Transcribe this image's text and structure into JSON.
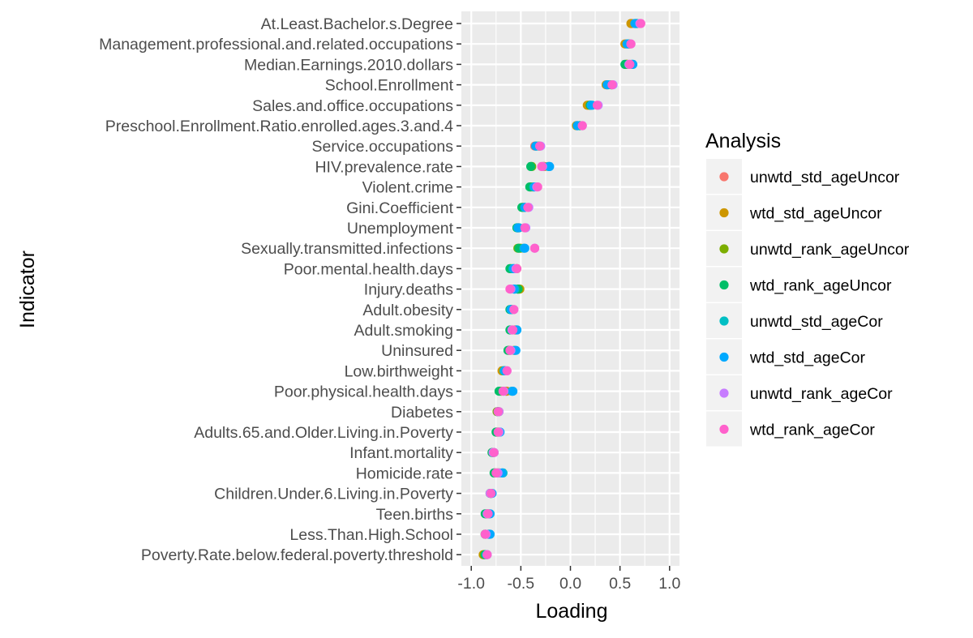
{
  "chart_data": {
    "type": "scatter",
    "title": "",
    "xlabel": "Loading",
    "ylabel": "Indicator",
    "xlim": [
      -1.1,
      1.1
    ],
    "xticks": [
      -1.0,
      -0.5,
      0.0,
      0.5,
      1.0
    ],
    "xtick_labels": [
      "-1.0",
      "-0.5",
      "0.0",
      "0.5",
      "1.0"
    ],
    "grid": true,
    "legend": {
      "title": "Analysis",
      "position": "right"
    },
    "categories": [
      "At.Least.Bachelor.s.Degree",
      "Management.professional.and.related.occupations",
      "Median.Earnings.2010.dollars",
      "School.Enrollment",
      "Sales.and.office.occupations",
      "Preschool.Enrollment.Ratio.enrolled.ages.3.and.4",
      "Service.occupations",
      "HIV.prevalence.rate",
      "Violent.crime",
      "Gini.Coefficient",
      "Unemployment",
      "Sexually.transmitted.infections",
      "Poor.mental.health.days",
      "Injury.deaths",
      "Adult.obesity",
      "Adult.smoking",
      "Uninsured",
      "Low.birthweight",
      "Poor.physical.health.days",
      "Diabetes",
      "Adults.65.and.Older.Living.in.Poverty",
      "Infant.mortality",
      "Homicide.rate",
      "Children.Under.6.Living.in.Poverty",
      "Teen.births",
      "Less.Than.High.School",
      "Poverty.Rate.below.federal.poverty.threshold"
    ],
    "series": [
      {
        "name": "unwtd_std_ageUncor",
        "color": "#F8766D",
        "values": [
          0.62,
          0.56,
          0.56,
          0.37,
          0.18,
          0.07,
          -0.36,
          -0.26,
          -0.39,
          -0.48,
          -0.52,
          -0.51,
          -0.57,
          -0.53,
          -0.59,
          -0.55,
          -0.61,
          -0.68,
          -0.64,
          -0.73,
          -0.74,
          -0.78,
          -0.74,
          -0.8,
          -0.83,
          -0.83,
          -0.87
        ]
      },
      {
        "name": "wtd_std_ageUncor",
        "color": "#CD9600",
        "values": [
          0.61,
          0.55,
          0.57,
          0.36,
          0.17,
          0.06,
          -0.35,
          -0.27,
          -0.38,
          -0.47,
          -0.53,
          -0.5,
          -0.54,
          -0.51,
          -0.6,
          -0.56,
          -0.57,
          -0.69,
          -0.65,
          -0.72,
          -0.73,
          -0.78,
          -0.72,
          -0.81,
          -0.84,
          -0.82,
          -0.88
        ]
      },
      {
        "name": "unwtd_rank_ageUncor",
        "color": "#7CAE00",
        "values": [
          0.66,
          0.6,
          0.57,
          0.42,
          0.2,
          0.09,
          -0.32,
          -0.39,
          -0.4,
          -0.48,
          -0.53,
          -0.53,
          -0.6,
          -0.52,
          -0.6,
          -0.6,
          -0.62,
          -0.66,
          -0.7,
          -0.74,
          -0.74,
          -0.79,
          -0.76,
          -0.8,
          -0.85,
          -0.86,
          -0.87
        ]
      },
      {
        "name": "wtd_rank_ageUncor",
        "color": "#00BE67",
        "values": [
          0.67,
          0.59,
          0.55,
          0.41,
          0.2,
          0.1,
          -0.31,
          -0.4,
          -0.41,
          -0.49,
          -0.54,
          -0.52,
          -0.61,
          -0.53,
          -0.61,
          -0.61,
          -0.63,
          -0.67,
          -0.72,
          -0.73,
          -0.75,
          -0.79,
          -0.77,
          -0.81,
          -0.86,
          -0.86,
          -0.86
        ]
      },
      {
        "name": "unwtd_std_ageCor",
        "color": "#00BFC4",
        "values": [
          0.66,
          0.58,
          0.62,
          0.38,
          0.22,
          0.07,
          -0.34,
          -0.22,
          -0.37,
          -0.46,
          -0.52,
          -0.47,
          -0.58,
          -0.56,
          -0.59,
          -0.54,
          -0.56,
          -0.67,
          -0.59,
          -0.73,
          -0.72,
          -0.78,
          -0.68,
          -0.8,
          -0.82,
          -0.82,
          -0.85
        ]
      },
      {
        "name": "wtd_std_ageCor",
        "color": "#00A9FF",
        "values": [
          0.65,
          0.57,
          0.63,
          0.37,
          0.21,
          0.07,
          -0.35,
          -0.21,
          -0.36,
          -0.46,
          -0.53,
          -0.46,
          -0.57,
          -0.57,
          -0.6,
          -0.54,
          -0.55,
          -0.66,
          -0.58,
          -0.73,
          -0.71,
          -0.77,
          -0.69,
          -0.79,
          -0.81,
          -0.81,
          -0.84
        ]
      },
      {
        "name": "unwtd_rank_ageCor",
        "color": "#C77CFF",
        "values": [
          0.7,
          0.61,
          0.59,
          0.43,
          0.28,
          0.12,
          -0.3,
          -0.28,
          -0.34,
          -0.42,
          -0.45,
          -0.36,
          -0.55,
          -0.6,
          -0.57,
          -0.59,
          -0.6,
          -0.64,
          -0.67,
          -0.72,
          -0.72,
          -0.78,
          -0.73,
          -0.81,
          -0.84,
          -0.85,
          -0.84
        ]
      },
      {
        "name": "wtd_rank_ageCor",
        "color": "#FF61CC",
        "values": [
          0.71,
          0.61,
          0.6,
          0.42,
          0.27,
          0.12,
          -0.31,
          -0.29,
          -0.33,
          -0.43,
          -0.46,
          -0.36,
          -0.54,
          -0.61,
          -0.57,
          -0.58,
          -0.61,
          -0.64,
          -0.68,
          -0.73,
          -0.73,
          -0.77,
          -0.75,
          -0.8,
          -0.83,
          -0.86,
          -0.84
        ]
      }
    ]
  }
}
